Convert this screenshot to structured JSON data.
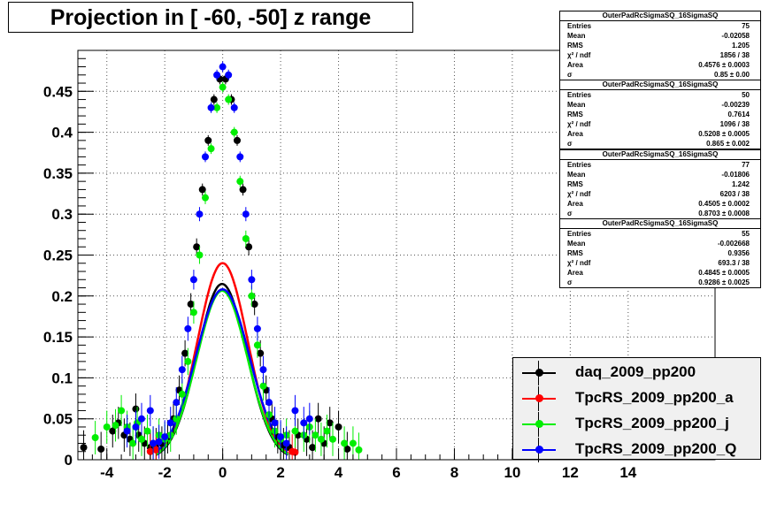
{
  "title": "Projection in [ -60, -50] z range",
  "chart_data": {
    "type": "scatter",
    "xlim": [
      -5,
      17
    ],
    "ylim": [
      0,
      0.5
    ],
    "x_ticks": [
      "-4",
      "-2",
      "0",
      "2",
      "4",
      "6",
      "8",
      "10",
      "12",
      "14"
    ],
    "x_tick_values": [
      -4,
      -2,
      0,
      2,
      4,
      6,
      8,
      10,
      12,
      14
    ],
    "y_ticks": [
      "0",
      "0.05",
      "0.1",
      "0.15",
      "0.2",
      "0.25",
      "0.3",
      "0.35",
      "0.4",
      "0.45"
    ],
    "y_tick_values": [
      0,
      0.05,
      0.1,
      0.15,
      0.2,
      0.25,
      0.3,
      0.35,
      0.4,
      0.45
    ],
    "grid": true,
    "legend_position": "bottom-right",
    "series": [
      {
        "name": "daq_2009_pp200",
        "color": "#000000",
        "area": 0.4576,
        "sigma": 0.85,
        "mean": -0.02058,
        "x": [
          -4.8,
          -4.2,
          -3.8,
          -3.6,
          -3.4,
          -3.2,
          -3.0,
          -2.9,
          -2.7,
          -2.5,
          -2.3,
          -2.1,
          -1.9,
          -1.7,
          -1.5,
          -1.3,
          -1.1,
          -0.9,
          -0.7,
          -0.5,
          -0.3,
          -0.1,
          0.1,
          0.3,
          0.5,
          0.7,
          0.9,
          1.1,
          1.3,
          1.5,
          1.7,
          1.9,
          2.1,
          2.3,
          2.6,
          2.9,
          3.1,
          3.3,
          3.5,
          3.7,
          4.0,
          4.3
        ],
        "y": [
          0.015,
          0.013,
          0.035,
          0.045,
          0.03,
          0.025,
          0.062,
          0.03,
          0.02,
          0.015,
          0.018,
          0.02,
          0.028,
          0.05,
          0.085,
          0.13,
          0.19,
          0.26,
          0.33,
          0.39,
          0.44,
          0.465,
          0.465,
          0.44,
          0.39,
          0.33,
          0.26,
          0.19,
          0.13,
          0.085,
          0.05,
          0.028,
          0.018,
          0.015,
          0.03,
          0.025,
          0.015,
          0.05,
          0.02,
          0.045,
          0.04,
          0.013
        ]
      },
      {
        "name": "TpcRS_2009_pp200_a",
        "color": "#ff0000",
        "area": 0.5208,
        "sigma": 0.865,
        "mean": -0.00239,
        "x": [
          -2.5,
          -2.3,
          2.4,
          2.5
        ],
        "y": [
          0.01,
          0.012,
          0.01,
          0.009
        ]
      },
      {
        "name": "TpcRS_2009_pp200_j",
        "color": "#00ee00",
        "area": 0.4505,
        "sigma": 0.8703,
        "mean": -0.01806,
        "x": [
          -4.4,
          -4.0,
          -3.7,
          -3.5,
          -3.3,
          -3.1,
          -2.95,
          -2.8,
          -2.6,
          -2.4,
          -2.2,
          -2.0,
          -1.8,
          -1.6,
          -1.4,
          -1.2,
          -1.0,
          -0.8,
          -0.6,
          -0.4,
          -0.2,
          0.0,
          0.2,
          0.4,
          0.6,
          0.8,
          1.0,
          1.2,
          1.4,
          1.6,
          1.8,
          2.0,
          2.2,
          2.5,
          2.8,
          3.0,
          3.2,
          3.4,
          3.6,
          3.8,
          4.2,
          4.5,
          4.7
        ],
        "y": [
          0.027,
          0.04,
          0.042,
          0.06,
          0.04,
          0.02,
          0.045,
          0.025,
          0.035,
          0.02,
          0.03,
          0.025,
          0.03,
          0.05,
          0.08,
          0.12,
          0.18,
          0.25,
          0.32,
          0.38,
          0.43,
          0.455,
          0.44,
          0.4,
          0.34,
          0.27,
          0.2,
          0.14,
          0.09,
          0.055,
          0.035,
          0.025,
          0.03,
          0.035,
          0.03,
          0.04,
          0.03,
          0.025,
          0.035,
          0.025,
          0.02,
          0.02,
          0.012
        ]
      },
      {
        "name": "TpcRS_2009_pp200_Q",
        "color": "#0000ff",
        "area": 0.4845,
        "sigma": 0.9286,
        "mean": -0.002668,
        "x": [
          -3.3,
          -3.0,
          -2.8,
          -2.5,
          -2.4,
          -2.2,
          -2.0,
          -1.8,
          -1.6,
          -1.4,
          -1.2,
          -1.0,
          -0.8,
          -0.6,
          -0.4,
          -0.2,
          0.0,
          0.2,
          0.4,
          0.6,
          0.8,
          1.0,
          1.2,
          1.4,
          1.6,
          1.8,
          2.0,
          2.2,
          2.5,
          2.8,
          3.0
        ],
        "y": [
          0.035,
          0.04,
          0.05,
          0.06,
          0.02,
          0.022,
          0.028,
          0.045,
          0.07,
          0.11,
          0.16,
          0.22,
          0.3,
          0.37,
          0.43,
          0.47,
          0.48,
          0.47,
          0.43,
          0.37,
          0.3,
          0.22,
          0.16,
          0.11,
          0.07,
          0.045,
          0.028,
          0.02,
          0.06,
          0.045,
          0.05
        ]
      }
    ]
  },
  "stats": [
    {
      "header": "OuterPadRcSigmaSQ_16SigmaSQ",
      "rows": [
        {
          "label": "Entries",
          "value": "75"
        },
        {
          "label": "Mean",
          "value": "-0.02058"
        },
        {
          "label": "RMS",
          "value": "1.205"
        },
        {
          "label": "χ² / ndf",
          "value": "1856 / 38"
        },
        {
          "label": "Area",
          "value": "0.4576 ± 0.0003"
        },
        {
          "label": "σ",
          "value": "0.85 ± 0.00"
        }
      ]
    },
    {
      "header": "OuterPadRcSigmaSQ_16SigmaSQ",
      "rows": [
        {
          "label": "Entries",
          "value": "50"
        },
        {
          "label": "Mean",
          "value": "-0.00239"
        },
        {
          "label": "RMS",
          "value": "0.7614"
        },
        {
          "label": "χ² / ndf",
          "value": "1096 / 38"
        },
        {
          "label": "Area",
          "value": "0.5208 ± 0.0005"
        },
        {
          "label": "σ",
          "value": "0.865 ± 0.002"
        }
      ]
    },
    {
      "header": "OuterPadRcSigmaSQ_16SigmaSQ",
      "rows": [
        {
          "label": "Entries",
          "value": "77"
        },
        {
          "label": "Mean",
          "value": "-0.01806"
        },
        {
          "label": "RMS",
          "value": "1.242"
        },
        {
          "label": "χ² / ndf",
          "value": "6203 / 38"
        },
        {
          "label": "Area",
          "value": "0.4505 ± 0.0002"
        },
        {
          "label": "σ",
          "value": "0.8703 ± 0.0008"
        }
      ]
    },
    {
      "header": "OuterPadRcSigmaSQ_16SigmaSQ",
      "rows": [
        {
          "label": "Entries",
          "value": "55"
        },
        {
          "label": "Mean",
          "value": "-0.002668"
        },
        {
          "label": "RMS",
          "value": "0.9356"
        },
        {
          "label": "χ² / ndf",
          "value": "693.3 / 38"
        },
        {
          "label": "Area",
          "value": "0.4845 ± 0.0005"
        },
        {
          "label": "σ",
          "value": "0.9286 ± 0.0025"
        }
      ]
    }
  ],
  "legend": [
    {
      "label": "daq_2009_pp200",
      "color": "#000000"
    },
    {
      "label": "TpcRS_2009_pp200_a",
      "color": "#ff0000"
    },
    {
      "label": "TpcRS_2009_pp200_j",
      "color": "#00ee00"
    },
    {
      "label": "TpcRS_2009_pp200_Q",
      "color": "#0000ff"
    }
  ]
}
